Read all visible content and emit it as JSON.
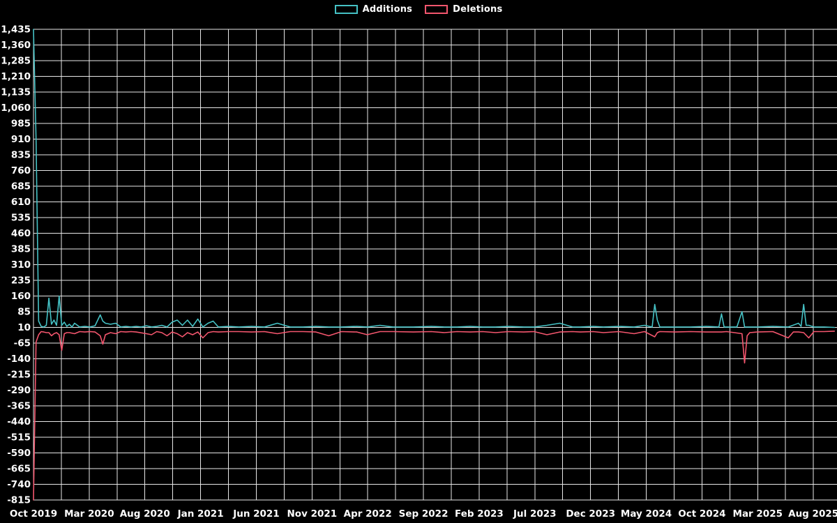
{
  "legend": {
    "items": [
      {
        "label": "Additions",
        "color": "#45c2c5"
      },
      {
        "label": "Deletions",
        "color": "#f4566e"
      }
    ]
  },
  "chart_data": {
    "type": "line",
    "title": "",
    "xlabel": "",
    "ylabel": "",
    "background": "#000000",
    "gridline_color": "#e8e8e8",
    "text_color": "#ffffff",
    "legend_position": "top-center",
    "grid": true,
    "ylim": [
      -815,
      1435
    ],
    "ytick_step": 75,
    "x_range_weeks": [
      0,
      313
    ],
    "x_labels": [
      "Oct 2019",
      "Mar 2020",
      "Aug 2020",
      "Jan 2021",
      "Jun 2021",
      "Nov 2021",
      "Apr 2022",
      "Sep 2022",
      "Feb 2023",
      "Jul 2023",
      "Dec 2023",
      "May 2024",
      "Oct 2024",
      "Mar 2025",
      "Aug 2025"
    ],
    "x_label_spacing_weeks": 21.7,
    "vertical_gridlines_per_label_interval": 2,
    "series": [
      {
        "name": "Additions",
        "color": "#45c2c5",
        "points": [
          [
            0,
            1435
          ],
          [
            1,
            910
          ],
          [
            2,
            40
          ],
          [
            3,
            15
          ],
          [
            4,
            12
          ],
          [
            5,
            20
          ],
          [
            6,
            150
          ],
          [
            7,
            25
          ],
          [
            8,
            45
          ],
          [
            9,
            20
          ],
          [
            10,
            160
          ],
          [
            11,
            20
          ],
          [
            12,
            35
          ],
          [
            13,
            15
          ],
          [
            14,
            25
          ],
          [
            15,
            12
          ],
          [
            16,
            30
          ],
          [
            18,
            12
          ],
          [
            20,
            15
          ],
          [
            22,
            12
          ],
          [
            24,
            18
          ],
          [
            26,
            70
          ],
          [
            27,
            40
          ],
          [
            28,
            30
          ],
          [
            30,
            25
          ],
          [
            32,
            30
          ],
          [
            34,
            12
          ],
          [
            36,
            15
          ],
          [
            38,
            12
          ],
          [
            40,
            15
          ],
          [
            42,
            12
          ],
          [
            44,
            18
          ],
          [
            46,
            12
          ],
          [
            48,
            15
          ],
          [
            50,
            20
          ],
          [
            52,
            12
          ],
          [
            54,
            35
          ],
          [
            56,
            45
          ],
          [
            58,
            20
          ],
          [
            60,
            45
          ],
          [
            62,
            15
          ],
          [
            64,
            50
          ],
          [
            66,
            12
          ],
          [
            68,
            30
          ],
          [
            70,
            40
          ],
          [
            72,
            12
          ],
          [
            76,
            15
          ],
          [
            80,
            12
          ],
          [
            85,
            15
          ],
          [
            90,
            12
          ],
          [
            95,
            30
          ],
          [
            100,
            12
          ],
          [
            105,
            12
          ],
          [
            110,
            15
          ],
          [
            115,
            12
          ],
          [
            120,
            12
          ],
          [
            126,
            15
          ],
          [
            130,
            12
          ],
          [
            135,
            20
          ],
          [
            140,
            12
          ],
          [
            148,
            12
          ],
          [
            155,
            15
          ],
          [
            160,
            12
          ],
          [
            165,
            12
          ],
          [
            170,
            15
          ],
          [
            175,
            12
          ],
          [
            180,
            12
          ],
          [
            185,
            15
          ],
          [
            191,
            12
          ],
          [
            195,
            12
          ],
          [
            200,
            20
          ],
          [
            205,
            30
          ],
          [
            210,
            12
          ],
          [
            213,
            12
          ],
          [
            218,
            15
          ],
          [
            222,
            12
          ],
          [
            228,
            15
          ],
          [
            234,
            12
          ],
          [
            238,
            20
          ],
          [
            241,
            12
          ],
          [
            242,
            120
          ],
          [
            243,
            45
          ],
          [
            244,
            12
          ],
          [
            250,
            12
          ],
          [
            256,
            12
          ],
          [
            262,
            15
          ],
          [
            267,
            12
          ],
          [
            268,
            75
          ],
          [
            269,
            12
          ],
          [
            274,
            12
          ],
          [
            276,
            85
          ],
          [
            277,
            12
          ],
          [
            282,
            12
          ],
          [
            288,
            15
          ],
          [
            294,
            12
          ],
          [
            298,
            30
          ],
          [
            299,
            15
          ],
          [
            300,
            120
          ],
          [
            301,
            20
          ],
          [
            302,
            20
          ],
          [
            304,
            12
          ],
          [
            308,
            12
          ],
          [
            312,
            10
          ]
        ]
      },
      {
        "name": "Deletions",
        "color": "#f4566e",
        "points": [
          [
            0,
            -815
          ],
          [
            1,
            -60
          ],
          [
            2,
            -25
          ],
          [
            3,
            -10
          ],
          [
            4,
            -12
          ],
          [
            5,
            -15
          ],
          [
            6,
            -15
          ],
          [
            7,
            -30
          ],
          [
            8,
            -20
          ],
          [
            9,
            -15
          ],
          [
            10,
            -25
          ],
          [
            11,
            -100
          ],
          [
            12,
            -20
          ],
          [
            13,
            -15
          ],
          [
            14,
            -15
          ],
          [
            16,
            -20
          ],
          [
            18,
            -10
          ],
          [
            20,
            -12
          ],
          [
            22,
            -10
          ],
          [
            24,
            -12
          ],
          [
            26,
            -30
          ],
          [
            27,
            -70
          ],
          [
            28,
            -25
          ],
          [
            30,
            -15
          ],
          [
            32,
            -20
          ],
          [
            34,
            -10
          ],
          [
            36,
            -12
          ],
          [
            38,
            -10
          ],
          [
            40,
            -12
          ],
          [
            44,
            -20
          ],
          [
            46,
            -25
          ],
          [
            48,
            -10
          ],
          [
            50,
            -15
          ],
          [
            52,
            -30
          ],
          [
            54,
            -12
          ],
          [
            56,
            -20
          ],
          [
            58,
            -35
          ],
          [
            60,
            -15
          ],
          [
            62,
            -25
          ],
          [
            64,
            -12
          ],
          [
            66,
            -40
          ],
          [
            68,
            -15
          ],
          [
            70,
            -10
          ],
          [
            72,
            -12
          ],
          [
            76,
            -10
          ],
          [
            80,
            -10
          ],
          [
            85,
            -12
          ],
          [
            90,
            -10
          ],
          [
            95,
            -20
          ],
          [
            100,
            -10
          ],
          [
            105,
            -10
          ],
          [
            110,
            -12
          ],
          [
            115,
            -30
          ],
          [
            120,
            -10
          ],
          [
            126,
            -12
          ],
          [
            130,
            -25
          ],
          [
            135,
            -10
          ],
          [
            140,
            -10
          ],
          [
            148,
            -12
          ],
          [
            155,
            -10
          ],
          [
            160,
            -15
          ],
          [
            165,
            -10
          ],
          [
            170,
            -12
          ],
          [
            175,
            -10
          ],
          [
            180,
            -15
          ],
          [
            185,
            -10
          ],
          [
            191,
            -12
          ],
          [
            195,
            -10
          ],
          [
            200,
            -25
          ],
          [
            205,
            -12
          ],
          [
            210,
            -10
          ],
          [
            213,
            -12
          ],
          [
            218,
            -10
          ],
          [
            222,
            -15
          ],
          [
            228,
            -10
          ],
          [
            234,
            -20
          ],
          [
            238,
            -10
          ],
          [
            242,
            -35
          ],
          [
            243,
            -15
          ],
          [
            244,
            -10
          ],
          [
            250,
            -12
          ],
          [
            256,
            -10
          ],
          [
            262,
            -12
          ],
          [
            268,
            -12
          ],
          [
            270,
            -10
          ],
          [
            276,
            -20
          ],
          [
            277,
            -160
          ],
          [
            278,
            -30
          ],
          [
            279,
            -15
          ],
          [
            282,
            -12
          ],
          [
            288,
            -10
          ],
          [
            294,
            -40
          ],
          [
            296,
            -12
          ],
          [
            298,
            -12
          ],
          [
            300,
            -15
          ],
          [
            302,
            -40
          ],
          [
            304,
            -10
          ],
          [
            308,
            -10
          ],
          [
            312,
            -8
          ]
        ]
      }
    ]
  }
}
